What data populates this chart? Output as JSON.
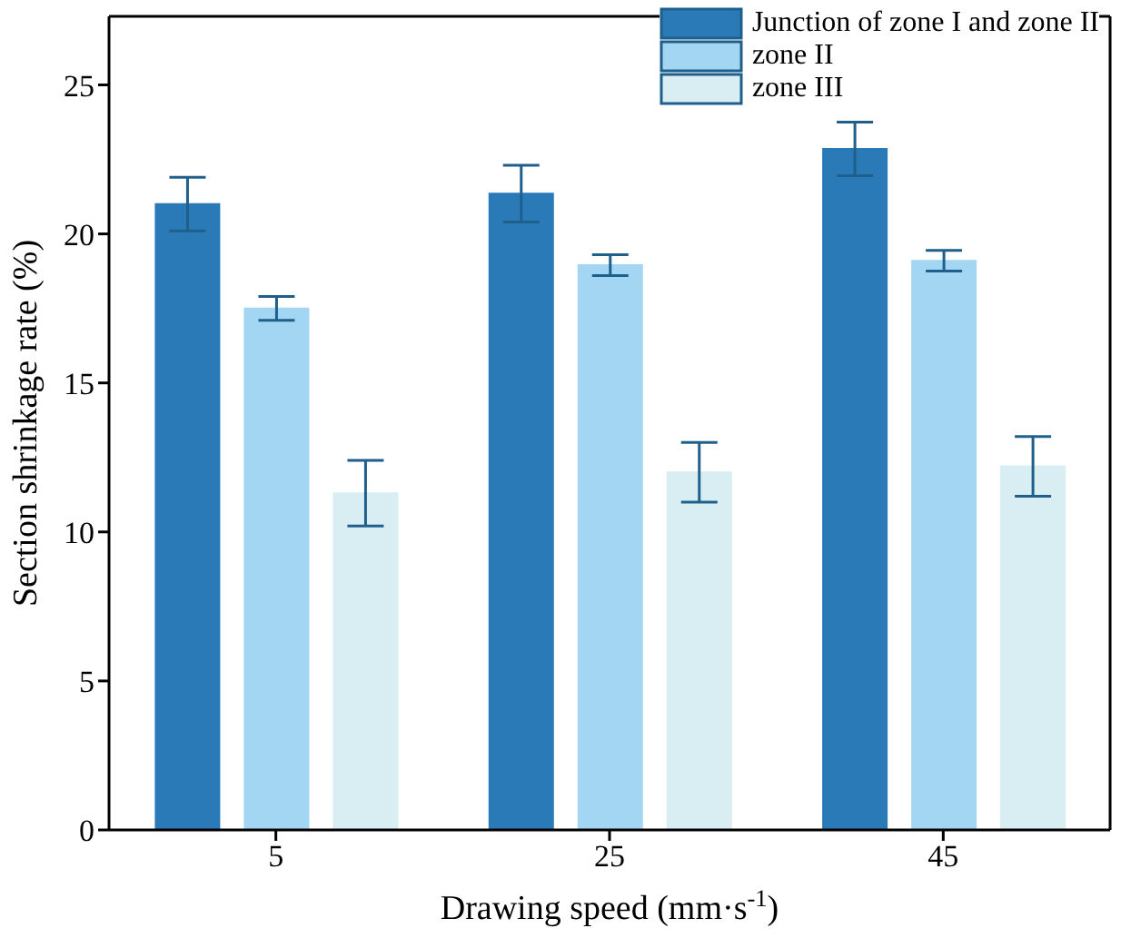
{
  "chart_data": {
    "type": "bar",
    "xlabel": "Drawing speed (mm·s$^{-1}$)",
    "ylabel": "Section shrinkage rate (%)",
    "categories": [
      "5",
      "25",
      "45"
    ],
    "series": [
      {
        "name": "Junction of zone I and zone II",
        "color": "#2a7ab8",
        "values": [
          21.0,
          21.35,
          22.85
        ],
        "errors": [
          0.9,
          0.95,
          0.9
        ]
      },
      {
        "name": "zone II",
        "color": "#a3d6f2",
        "values": [
          17.5,
          18.95,
          19.1
        ],
        "errors": [
          0.4,
          0.35,
          0.35
        ]
      },
      {
        "name": "zone III",
        "color": "#d8eef3",
        "values": [
          11.3,
          12.0,
          12.2
        ],
        "errors": [
          1.1,
          1.0,
          1.0
        ]
      }
    ],
    "ylim": [
      0,
      27.3
    ],
    "yticks": [
      0,
      5,
      10,
      15,
      20,
      25
    ],
    "grid": false,
    "legend": "top right"
  }
}
